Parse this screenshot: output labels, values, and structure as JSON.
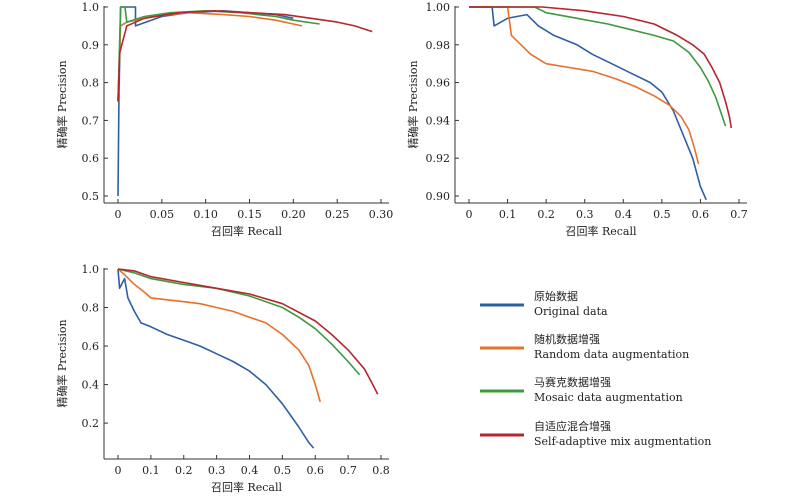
{
  "colors": {
    "original": "#2e5fa3",
    "random": "#e8702a",
    "mosaic": "#3d9a3d",
    "selfadaptive": "#b5262d",
    "axis": "#333333"
  },
  "legend": [
    {
      "key": "original",
      "zh": "原始数据",
      "en": "Original data"
    },
    {
      "key": "random",
      "zh": "随机数据增强",
      "en": "Random data augmentation"
    },
    {
      "key": "mosaic",
      "zh": "马赛克数据增强",
      "en": "Mosaic data augmentation"
    },
    {
      "key": "selfadaptive",
      "zh": "自适应混合增强",
      "en": "Self-adaptive mix augmentation"
    }
  ],
  "chart_data": [
    {
      "type": "line",
      "xlabel": "召回率 Recall",
      "ylabel": "精确率 Precision",
      "xlim": [
        0,
        0.3
      ],
      "ylim": [
        0.5,
        1.0
      ],
      "xticks": [
        "0",
        "0.05",
        "0.10",
        "0.15",
        "0.20",
        "0.25",
        "0.30"
      ],
      "xtick_values": [
        0,
        0.05,
        0.1,
        0.15,
        0.2,
        0.25,
        0.3
      ],
      "yticks": [
        "0.5",
        "0.6",
        "0.7",
        "0.8",
        "0.9",
        "1.0"
      ],
      "ytick_values": [
        0.5,
        0.6,
        0.7,
        0.8,
        0.9,
        1.0
      ],
      "series": [
        {
          "key": "original",
          "name": "Original data",
          "points": [
            [
              0,
              0.5
            ],
            [
              0.001,
              0.75
            ],
            [
              0.003,
              1.0
            ],
            [
              0.02,
              1.0
            ],
            [
              0.02,
              0.95
            ],
            [
              0.05,
              0.975
            ],
            [
              0.08,
              0.985
            ],
            [
              0.12,
              0.99
            ],
            [
              0.15,
              0.985
            ],
            [
              0.18,
              0.98
            ],
            [
              0.2,
              0.97
            ]
          ]
        },
        {
          "key": "random",
          "name": "Random data augmentation",
          "points": [
            [
              0,
              0.75
            ],
            [
              0.003,
              0.95
            ],
            [
              0.01,
              0.96
            ],
            [
              0.04,
              0.975
            ],
            [
              0.08,
              0.985
            ],
            [
              0.12,
              0.98
            ],
            [
              0.15,
              0.975
            ],
            [
              0.18,
              0.965
            ],
            [
              0.2,
              0.955
            ],
            [
              0.21,
              0.95
            ]
          ]
        },
        {
          "key": "mosaic",
          "name": "Mosaic data augmentation",
          "points": [
            [
              0,
              0.75
            ],
            [
              0.003,
              1.0
            ],
            [
              0.008,
              1.0
            ],
            [
              0.01,
              0.96
            ],
            [
              0.03,
              0.975
            ],
            [
              0.06,
              0.985
            ],
            [
              0.1,
              0.99
            ],
            [
              0.14,
              0.985
            ],
            [
              0.18,
              0.975
            ],
            [
              0.2,
              0.965
            ],
            [
              0.23,
              0.955
            ]
          ]
        },
        {
          "key": "selfadaptive",
          "name": "Self-adaptive mix augmentation",
          "points": [
            [
              0,
              0.75
            ],
            [
              0.002,
              0.88
            ],
            [
              0.01,
              0.95
            ],
            [
              0.03,
              0.97
            ],
            [
              0.07,
              0.985
            ],
            [
              0.11,
              0.99
            ],
            [
              0.15,
              0.985
            ],
            [
              0.19,
              0.98
            ],
            [
              0.22,
              0.97
            ],
            [
              0.25,
              0.96
            ],
            [
              0.27,
              0.95
            ],
            [
              0.29,
              0.935
            ]
          ]
        }
      ]
    },
    {
      "type": "line",
      "xlabel": "召回率 Recall",
      "ylabel": "精确率 Precision",
      "xlim": [
        0,
        0.7
      ],
      "ylim": [
        0.9,
        1.0
      ],
      "xticks": [
        "0",
        "0.1",
        "0.2",
        "0.3",
        "0.4",
        "0.5",
        "0.6",
        "0.7"
      ],
      "xtick_values": [
        0,
        0.1,
        0.2,
        0.3,
        0.4,
        0.5,
        0.6,
        0.7
      ],
      "yticks": [
        "0.90",
        "0.92",
        "0.94",
        "0.96",
        "0.98",
        "1.00"
      ],
      "ytick_values": [
        0.9,
        0.92,
        0.94,
        0.96,
        0.98,
        1.0
      ],
      "series": [
        {
          "key": "original",
          "name": "Original data",
          "points": [
            [
              0,
              1.0
            ],
            [
              0.06,
              1.0
            ],
            [
              0.065,
              0.99
            ],
            [
              0.1,
              0.994
            ],
            [
              0.15,
              0.996
            ],
            [
              0.18,
              0.99
            ],
            [
              0.22,
              0.985
            ],
            [
              0.28,
              0.98
            ],
            [
              0.32,
              0.975
            ],
            [
              0.37,
              0.97
            ],
            [
              0.42,
              0.965
            ],
            [
              0.47,
              0.96
            ],
            [
              0.5,
              0.955
            ],
            [
              0.53,
              0.945
            ],
            [
              0.55,
              0.935
            ],
            [
              0.58,
              0.92
            ],
            [
              0.6,
              0.905
            ],
            [
              0.615,
              0.898
            ]
          ]
        },
        {
          "key": "random",
          "name": "Random data augmentation",
          "points": [
            [
              0,
              1.0
            ],
            [
              0.1,
              1.0
            ],
            [
              0.11,
              0.985
            ],
            [
              0.16,
              0.975
            ],
            [
              0.2,
              0.97
            ],
            [
              0.26,
              0.968
            ],
            [
              0.32,
              0.966
            ],
            [
              0.38,
              0.962
            ],
            [
              0.43,
              0.958
            ],
            [
              0.48,
              0.953
            ],
            [
              0.52,
              0.948
            ],
            [
              0.55,
              0.942
            ],
            [
              0.57,
              0.935
            ],
            [
              0.585,
              0.925
            ],
            [
              0.595,
              0.917
            ]
          ]
        },
        {
          "key": "mosaic",
          "name": "Mosaic data augmentation",
          "points": [
            [
              0,
              1.0
            ],
            [
              0.17,
              1.0
            ],
            [
              0.2,
              0.997
            ],
            [
              0.28,
              0.994
            ],
            [
              0.36,
              0.991
            ],
            [
              0.42,
              0.988
            ],
            [
              0.48,
              0.985
            ],
            [
              0.53,
              0.982
            ],
            [
              0.57,
              0.976
            ],
            [
              0.6,
              0.968
            ],
            [
              0.62,
              0.961
            ],
            [
              0.64,
              0.952
            ],
            [
              0.66,
              0.94
            ],
            [
              0.665,
              0.937
            ]
          ]
        },
        {
          "key": "selfadaptive",
          "name": "Self-adaptive mix augmentation",
          "points": [
            [
              0,
              1.0
            ],
            [
              0.19,
              1.0
            ],
            [
              0.3,
              0.998
            ],
            [
              0.4,
              0.995
            ],
            [
              0.48,
              0.991
            ],
            [
              0.54,
              0.985
            ],
            [
              0.58,
              0.98
            ],
            [
              0.61,
              0.975
            ],
            [
              0.63,
              0.968
            ],
            [
              0.65,
              0.96
            ],
            [
              0.665,
              0.95
            ],
            [
              0.675,
              0.942
            ],
            [
              0.68,
              0.936
            ]
          ]
        }
      ]
    },
    {
      "type": "line",
      "xlabel": "召回率 Recall",
      "ylabel": "精确率 Precision",
      "xlim": [
        0,
        0.8
      ],
      "ylim": [
        0.05,
        1.0
      ],
      "xticks": [
        "0",
        "0.1",
        "0.2",
        "0.3",
        "0.4",
        "0.5",
        "0.6",
        "0.7",
        "0.8"
      ],
      "xtick_values": [
        0,
        0.1,
        0.2,
        0.3,
        0.4,
        0.5,
        0.6,
        0.7,
        0.8
      ],
      "yticks": [
        "0.2",
        "0.4",
        "0.6",
        "0.8",
        "1.0"
      ],
      "ytick_values": [
        0.2,
        0.4,
        0.6,
        0.8,
        1.0
      ],
      "series": [
        {
          "key": "original",
          "name": "Original data",
          "points": [
            [
              0,
              1.0
            ],
            [
              0.005,
              0.9
            ],
            [
              0.02,
              0.95
            ],
            [
              0.03,
              0.85
            ],
            [
              0.05,
              0.78
            ],
            [
              0.07,
              0.72
            ],
            [
              0.1,
              0.7
            ],
            [
              0.15,
              0.66
            ],
            [
              0.2,
              0.63
            ],
            [
              0.25,
              0.6
            ],
            [
              0.3,
              0.56
            ],
            [
              0.35,
              0.52
            ],
            [
              0.4,
              0.47
            ],
            [
              0.45,
              0.4
            ],
            [
              0.5,
              0.3
            ],
            [
              0.55,
              0.18
            ],
            [
              0.58,
              0.1
            ],
            [
              0.595,
              0.07
            ]
          ]
        },
        {
          "key": "random",
          "name": "Random data augmentation",
          "points": [
            [
              0,
              1.0
            ],
            [
              0.02,
              0.97
            ],
            [
              0.05,
              0.92
            ],
            [
              0.08,
              0.88
            ],
            [
              0.1,
              0.85
            ],
            [
              0.15,
              0.84
            ],
            [
              0.2,
              0.83
            ],
            [
              0.25,
              0.82
            ],
            [
              0.3,
              0.8
            ],
            [
              0.35,
              0.78
            ],
            [
              0.4,
              0.75
            ],
            [
              0.45,
              0.72
            ],
            [
              0.5,
              0.66
            ],
            [
              0.55,
              0.58
            ],
            [
              0.58,
              0.5
            ],
            [
              0.6,
              0.4
            ],
            [
              0.615,
              0.31
            ]
          ]
        },
        {
          "key": "mosaic",
          "name": "Mosaic data augmentation",
          "points": [
            [
              0,
              1.0
            ],
            [
              0.05,
              0.98
            ],
            [
              0.1,
              0.95
            ],
            [
              0.2,
              0.92
            ],
            [
              0.3,
              0.9
            ],
            [
              0.4,
              0.86
            ],
            [
              0.5,
              0.8
            ],
            [
              0.55,
              0.75
            ],
            [
              0.6,
              0.69
            ],
            [
              0.65,
              0.61
            ],
            [
              0.7,
              0.52
            ],
            [
              0.735,
              0.45
            ]
          ]
        },
        {
          "key": "selfadaptive",
          "name": "Self-adaptive mix augmentation",
          "points": [
            [
              0,
              1.0
            ],
            [
              0.05,
              0.99
            ],
            [
              0.1,
              0.96
            ],
            [
              0.2,
              0.93
            ],
            [
              0.3,
              0.9
            ],
            [
              0.4,
              0.87
            ],
            [
              0.5,
              0.82
            ],
            [
              0.6,
              0.73
            ],
            [
              0.65,
              0.66
            ],
            [
              0.7,
              0.58
            ],
            [
              0.75,
              0.48
            ],
            [
              0.775,
              0.4
            ],
            [
              0.79,
              0.35
            ]
          ]
        }
      ]
    }
  ]
}
